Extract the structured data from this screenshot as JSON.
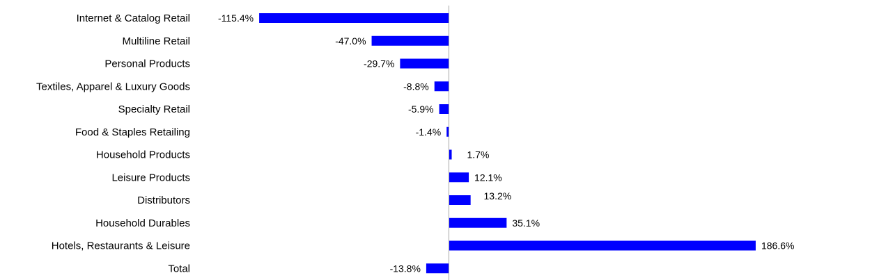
{
  "chart_data": {
    "type": "bar",
    "orientation": "horizontal",
    "title": "",
    "xlabel": "",
    "ylabel": "",
    "categories": [
      "Internet & Catalog Retail",
      "Multiline Retail",
      "Personal Products",
      "Textiles, Apparel & Luxury Goods",
      "Specialty Retail",
      "Food & Staples Retailing",
      "Household Products",
      "Leisure Products",
      "Distributors",
      "Household Durables",
      "Hotels, Restaurants & Leisure",
      "Total"
    ],
    "values": [
      -115.4,
      -47.0,
      -29.7,
      -8.8,
      -5.9,
      -1.4,
      1.7,
      12.1,
      13.2,
      35.1,
      186.6,
      -13.8
    ],
    "data_labels": [
      "-115.4%",
      "-47.0%",
      "-29.7%",
      "-8.8%",
      "-5.9%",
      "-1.4%",
      "1.7%",
      "12.1%",
      "13.2%",
      "35.1%",
      "186.6%",
      "-13.8%"
    ],
    "value_unit": "%",
    "bar_color": "#0000FF",
    "axis_line_color": "#A6A6A6",
    "grid": false,
    "legend": "none"
  }
}
